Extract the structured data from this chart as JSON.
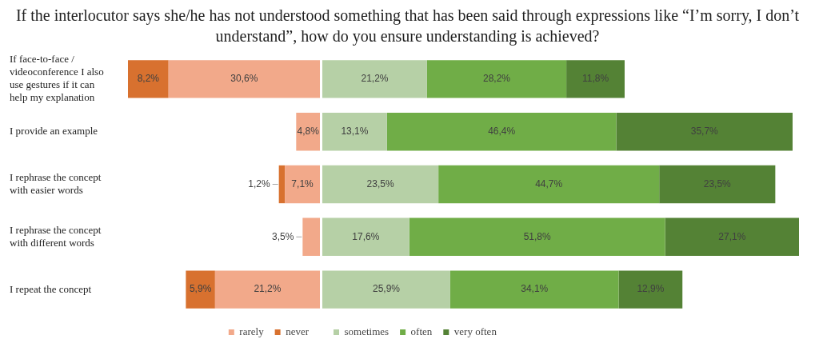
{
  "chart_data": [
    {
      "type": "bar",
      "orientation": "horizontal",
      "stacked": true,
      "title": "If the interlocutor says she/he has not understood something that has been said through expressions like “I’m sorry, I don’t understand”, how do you ensure understanding is achieved?",
      "categories": [
        "If face-to-face / videoconference I also use gestures if it can help my explanation",
        "I provide an example",
        "I rephrase the concept with easier words",
        "I rephrase the concept with different words",
        "I repeat the concept"
      ],
      "series": [
        {
          "name": "rarely",
          "color": "#f2a98a",
          "values": [
            30.6,
            4.8,
            7.1,
            3.5,
            21.2
          ],
          "value_labels": [
            "30,6%",
            "4,8%",
            "7,1%",
            "3,5%",
            "21,2%"
          ]
        },
        {
          "name": "never",
          "color": "#d8712f",
          "values": [
            8.2,
            null,
            1.2,
            null,
            5.9
          ],
          "value_labels": [
            "8,2%",
            null,
            "1,2%",
            null,
            "5,9%"
          ]
        }
      ],
      "xlim": [
        38.8,
        0
      ],
      "legend": "bottom",
      "tick_labels": "y"
    },
    {
      "type": "bar",
      "orientation": "horizontal",
      "stacked": true,
      "categories": [
        null,
        null,
        null,
        null,
        null
      ],
      "series": [
        {
          "name": "sometimes",
          "color": "#b6d0a6",
          "values": [
            21.2,
            13.1,
            23.5,
            17.6,
            25.9
          ],
          "value_labels": [
            "21,2%",
            "13,1%",
            "23,5%",
            "17,6%",
            "25,9%"
          ]
        },
        {
          "name": "often",
          "color": "#70ad47",
          "values": [
            28.2,
            46.4,
            44.7,
            51.8,
            34.1
          ],
          "value_labels": [
            "28,2%",
            "46,4%",
            "44,7%",
            "51,8%",
            "34,1%"
          ]
        },
        {
          "name": "very often",
          "color": "#548235",
          "values": [
            11.8,
            35.7,
            23.5,
            27.1,
            12.9
          ],
          "value_labels": [
            "11,8%",
            "35,7%",
            "23,5%",
            "27,1%",
            "12,9%"
          ]
        }
      ],
      "xlim": [
        0,
        96.5
      ],
      "legend": "bottom",
      "tick_labels": false
    }
  ]
}
